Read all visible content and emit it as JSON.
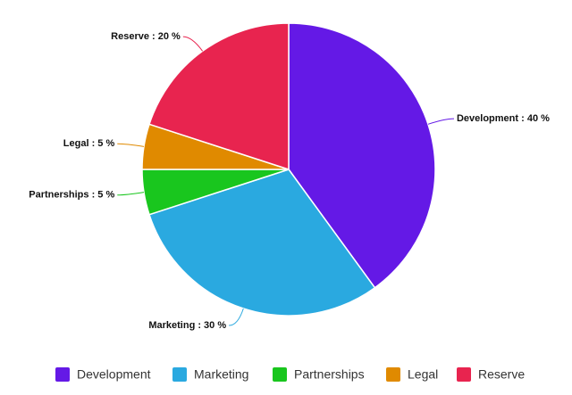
{
  "chart_data": {
    "type": "pie",
    "categories": [
      "Development",
      "Marketing",
      "Partnerships",
      "Legal",
      "Reserve"
    ],
    "values": [
      40,
      30,
      5,
      5,
      20
    ],
    "value_labels": [
      "Development : 40 %",
      "Marketing : 30 %",
      "Partnerships : 5 %",
      "Legal : 5 %",
      "Reserve : 20 %"
    ],
    "colors": [
      "#6419e6",
      "#2aa9e0",
      "#19c61e",
      "#e08a00",
      "#e8244f"
    ]
  }
}
